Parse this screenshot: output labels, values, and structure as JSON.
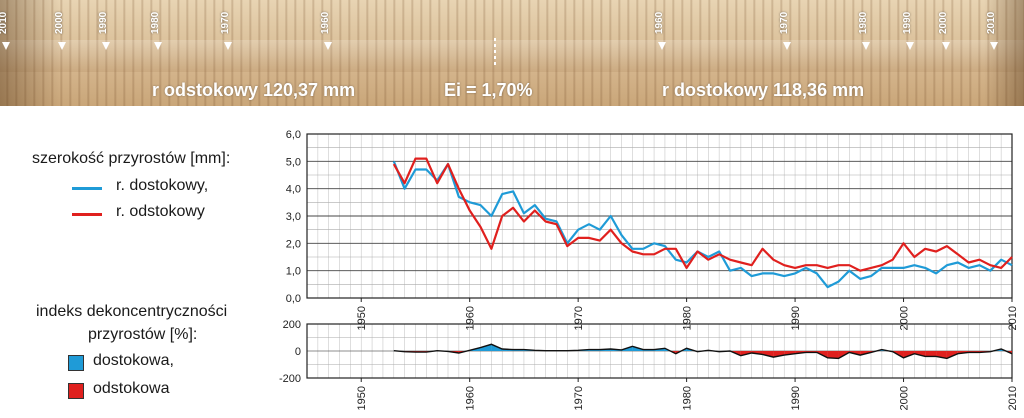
{
  "core": {
    "left_label": "r odstokowy 120,37 mm",
    "center_label": "Ei = 1,70%",
    "right_label": "r dostokowy 118,36 mm",
    "year_markers": [
      "2010",
      "2000",
      "1990",
      "1980",
      "1970",
      "1960",
      "1960",
      "1970",
      "1980",
      "1990",
      "2000",
      "2010"
    ]
  },
  "legend": {
    "top_title": "szerokość przyrostów [mm]:",
    "top_items": [
      {
        "label": "r. dostokowy,",
        "color": "#1f9bd7"
      },
      {
        "label": "r. odstokowy",
        "color": "#e0201e"
      }
    ],
    "bottom_title_1": "indeks dekoncentryczności",
    "bottom_title_2": "przyrostów [%]:",
    "bottom_items": [
      {
        "label": "dostokowa,",
        "color": "#1f9bd7"
      },
      {
        "label": "odstokowa",
        "color": "#e0201e"
      }
    ]
  },
  "chart_data": [
    {
      "type": "line",
      "ylim": [
        0,
        6
      ],
      "yticks": [
        "0,0",
        "1,0",
        "2,0",
        "3,0",
        "4,0",
        "5,0",
        "6,0"
      ],
      "xlim": [
        1945,
        2010
      ],
      "xticks": [
        "1950",
        "1960",
        "1970",
        "1980",
        "1990",
        "2000",
        "2010"
      ],
      "x": [
        1953,
        1954,
        1955,
        1956,
        1957,
        1958,
        1959,
        1960,
        1961,
        1962,
        1963,
        1964,
        1965,
        1966,
        1967,
        1968,
        1969,
        1970,
        1971,
        1972,
        1973,
        1974,
        1975,
        1976,
        1977,
        1978,
        1979,
        1980,
        1981,
        1982,
        1983,
        1984,
        1985,
        1986,
        1987,
        1988,
        1989,
        1990,
        1991,
        1992,
        1993,
        1994,
        1995,
        1996,
        1997,
        1998,
        1999,
        2000,
        2001,
        2002,
        2003,
        2004,
        2005,
        2006,
        2007,
        2008,
        2009,
        2010
      ],
      "series": [
        {
          "name": "r. dostokowy,",
          "color": "#1f9bd7",
          "values": [
            5.0,
            4.0,
            4.7,
            4.7,
            4.3,
            4.9,
            3.7,
            3.5,
            3.4,
            3.0,
            3.8,
            3.9,
            3.1,
            3.4,
            2.9,
            2.8,
            2.0,
            2.5,
            2.7,
            2.5,
            3.0,
            2.3,
            1.8,
            1.8,
            2.0,
            1.9,
            1.4,
            1.3,
            1.7,
            1.5,
            1.7,
            1.0,
            1.1,
            0.8,
            0.9,
            0.9,
            0.8,
            0.9,
            1.1,
            0.9,
            0.4,
            0.6,
            1.0,
            0.7,
            0.8,
            1.1,
            1.1,
            1.1,
            1.2,
            1.1,
            0.9,
            1.2,
            1.3,
            1.1,
            1.2,
            1.0,
            1.4,
            1.2
          ]
        },
        {
          "name": "r. odstokowy",
          "color": "#e0201e",
          "values": [
            4.9,
            4.2,
            5.1,
            5.1,
            4.2,
            4.9,
            4.0,
            3.2,
            2.6,
            1.8,
            3.0,
            3.3,
            2.8,
            3.2,
            2.8,
            2.7,
            1.9,
            2.2,
            2.2,
            2.1,
            2.5,
            2.0,
            1.7,
            1.6,
            1.6,
            1.8,
            1.8,
            1.1,
            1.7,
            1.4,
            1.6,
            1.4,
            1.3,
            1.2,
            1.8,
            1.4,
            1.2,
            1.1,
            1.2,
            1.2,
            1.1,
            1.2,
            1.2,
            1.0,
            1.1,
            1.2,
            1.4,
            2.0,
            1.5,
            1.8,
            1.7,
            1.9,
            1.6,
            1.3,
            1.4,
            1.2,
            1.1,
            1.5
          ]
        }
      ]
    },
    {
      "type": "area",
      "ylim": [
        -200,
        200
      ],
      "yticks": [
        "-200",
        "0",
        "200"
      ],
      "xlim": [
        1945,
        2010
      ],
      "xticks": [
        "1950",
        "1960",
        "1970",
        "1980",
        "1990",
        "2000",
        "2010"
      ],
      "x": [
        1953,
        1954,
        1955,
        1956,
        1957,
        1958,
        1959,
        1960,
        1961,
        1962,
        1963,
        1964,
        1965,
        1966,
        1967,
        1968,
        1969,
        1970,
        1971,
        1972,
        1973,
        1974,
        1975,
        1976,
        1977,
        1978,
        1979,
        1980,
        1981,
        1982,
        1983,
        1984,
        1985,
        1986,
        1987,
        1988,
        1989,
        1990,
        1991,
        1992,
        1993,
        1994,
        1995,
        1996,
        1997,
        1998,
        1999,
        2000,
        2001,
        2002,
        2003,
        2004,
        2005,
        2006,
        2007,
        2008,
        2009,
        2010
      ],
      "values": [
        2,
        -5,
        -8,
        -8,
        2,
        -3,
        -15,
        5,
        25,
        50,
        15,
        10,
        10,
        5,
        2,
        2,
        2,
        5,
        10,
        10,
        15,
        8,
        35,
        10,
        10,
        20,
        -20,
        20,
        -5,
        5,
        -5,
        0,
        -35,
        -15,
        -25,
        -45,
        -30,
        -20,
        -10,
        -10,
        -50,
        -55,
        -10,
        -30,
        -10,
        10,
        -5,
        -50,
        -20,
        -40,
        -40,
        -55,
        -20,
        -10,
        -10,
        -5,
        15,
        -20
      ],
      "positive_label": "dostokowa,",
      "positive_color": "#1f9bd7",
      "negative_label": "odstokowa",
      "negative_color": "#e0201e"
    }
  ]
}
